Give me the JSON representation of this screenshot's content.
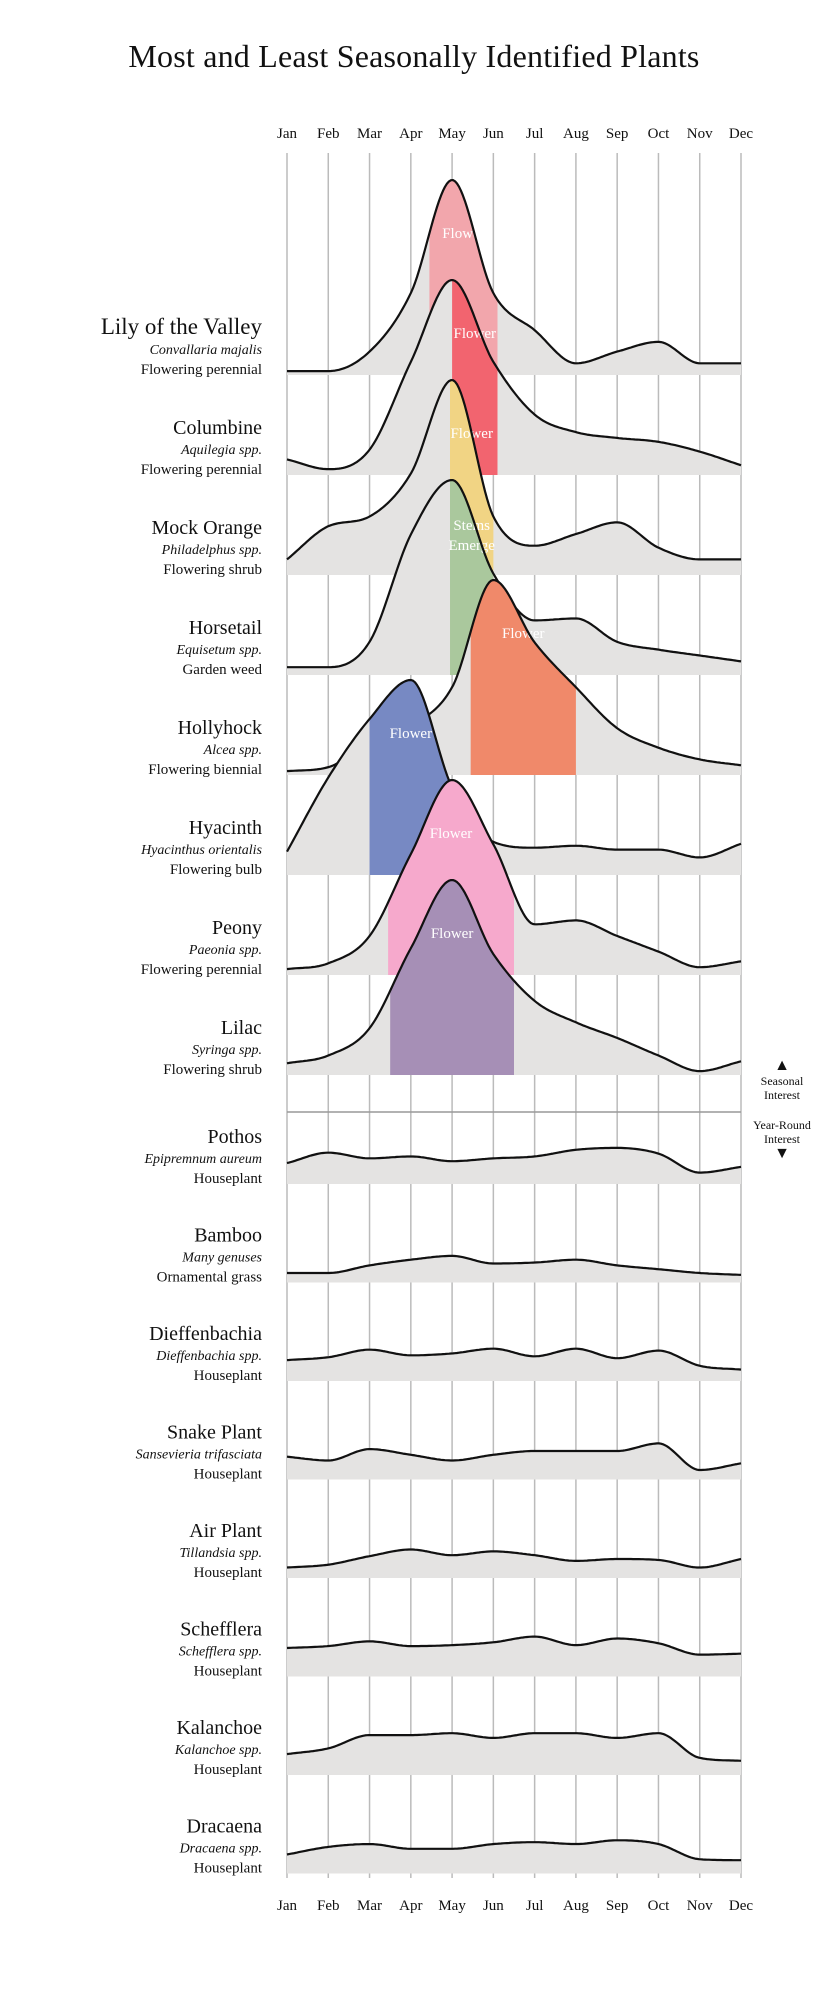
{
  "chart_data": {
    "type": "area",
    "title": "Most and Least Seasonally Identified Plants",
    "x_labels": [
      "Jan",
      "Feb",
      "Mar",
      "Apr",
      "May",
      "Jun",
      "Jul",
      "Aug",
      "Sep",
      "Oct",
      "Nov",
      "Dec"
    ],
    "xlabel": "",
    "ylabel": "",
    "ylim": [
      0,
      1
    ],
    "legend": {
      "seasonal_label": "Seasonal Interest",
      "yearround_label": "Year-Round Interest",
      "up_arrow": "▲",
      "down_arrow": "▼"
    },
    "colors": {
      "base_fill": "#e4e3e2",
      "line": "#111111",
      "gridline": "#bbbbbb",
      "highlight_text": "#ffffff"
    },
    "series": [
      {
        "name": "Lily of the Valley",
        "scientific": "Convallaria majalis",
        "category": "Flowering perennial",
        "group": "seasonal",
        "values": [
          0.02,
          0.02,
          0.12,
          0.42,
          1.0,
          0.42,
          0.23,
          0.06,
          0.12,
          0.17,
          0.06,
          0.06
        ],
        "highlight": {
          "label": "Flower",
          "start_month": 3.45,
          "end_month": 5.1,
          "color": "#f2a6ac"
        }
      },
      {
        "name": "Columbine",
        "scientific": "Aquilegia spp.",
        "category": "Flowering perennial",
        "group": "seasonal",
        "values": [
          0.08,
          0.03,
          0.13,
          0.58,
          1.0,
          0.58,
          0.31,
          0.22,
          0.19,
          0.17,
          0.12,
          0.05
        ],
        "highlight": {
          "label": "Flower",
          "start_month": 4.0,
          "end_month": 5.1,
          "color": "#f2646f"
        }
      },
      {
        "name": "Mock Orange",
        "scientific": "Philadelphus spp.",
        "category": "Flowering shrub",
        "group": "seasonal",
        "values": [
          0.08,
          0.25,
          0.3,
          0.52,
          1.0,
          0.3,
          0.15,
          0.21,
          0.27,
          0.14,
          0.08,
          0.08
        ],
        "highlight": {
          "label": "Flower",
          "start_month": 3.95,
          "end_month": 5.0,
          "color": "#f1d484"
        }
      },
      {
        "name": "Horsetail",
        "scientific": "Equisetum spp.",
        "category": "Garden weed",
        "group": "seasonal",
        "values": [
          0.04,
          0.04,
          0.17,
          0.72,
          1.0,
          0.52,
          0.28,
          0.29,
          0.17,
          0.13,
          0.1,
          0.07
        ],
        "highlight": {
          "label": "Stems\nEmerge",
          "start_month": 3.95,
          "end_month": 5.0,
          "color": "#aac89d"
        }
      },
      {
        "name": "Hollyhock",
        "scientific": "Alcea spp.",
        "category": "Flowering biennial",
        "group": "seasonal",
        "values": [
          0.02,
          0.04,
          0.17,
          0.25,
          0.45,
          1.0,
          0.68,
          0.45,
          0.24,
          0.14,
          0.08,
          0.05
        ],
        "highlight": {
          "label": "Flower",
          "start_month": 4.45,
          "end_month": 7.0,
          "color": "#f0896a"
        }
      },
      {
        "name": "Hyacinth",
        "scientific": "Hyacinthus orientalis",
        "category": "Flowering bulb",
        "group": "seasonal",
        "values": [
          0.12,
          0.5,
          0.8,
          1.0,
          0.45,
          0.17,
          0.14,
          0.15,
          0.13,
          0.13,
          0.09,
          0.16
        ],
        "highlight": {
          "label": "Flower",
          "start_month": 2.0,
          "end_month": 4.0,
          "color": "#7789c3"
        }
      },
      {
        "name": "Peony",
        "scientific": "Paeonia spp.",
        "category": "Flowering perennial",
        "group": "seasonal",
        "values": [
          0.03,
          0.06,
          0.2,
          0.62,
          1.0,
          0.67,
          0.26,
          0.28,
          0.2,
          0.12,
          0.04,
          0.07
        ],
        "highlight": {
          "label": "Flower",
          "start_month": 2.45,
          "end_month": 5.5,
          "color": "#f6a9cc"
        }
      },
      {
        "name": "Lilac",
        "scientific": "Syringa spp.",
        "category": "Flowering shrub",
        "group": "seasonal",
        "values": [
          0.06,
          0.1,
          0.24,
          0.65,
          1.0,
          0.62,
          0.38,
          0.27,
          0.19,
          0.1,
          0.02,
          0.07
        ],
        "highlight": {
          "label": "Flower",
          "start_month": 2.5,
          "end_month": 5.5,
          "color": "#a68fb6"
        }
      },
      {
        "name": "Pothos",
        "scientific": "Epipremnum aureum",
        "category": "Houseplant",
        "group": "year-round",
        "values": [
          0.22,
          0.33,
          0.27,
          0.29,
          0.24,
          0.27,
          0.29,
          0.36,
          0.38,
          0.32,
          0.12,
          0.18
        ]
      },
      {
        "name": "Bamboo",
        "scientific": "Many genuses",
        "category": "Ornamental grass",
        "group": "year-round",
        "values": [
          0.1,
          0.1,
          0.18,
          0.24,
          0.28,
          0.2,
          0.21,
          0.24,
          0.18,
          0.14,
          0.1,
          0.08
        ]
      },
      {
        "name": "Dieffenbachia",
        "scientific": "Dieffenbachia spp.",
        "category": "Houseplant",
        "group": "year-round",
        "values": [
          0.22,
          0.25,
          0.33,
          0.27,
          0.29,
          0.34,
          0.26,
          0.34,
          0.24,
          0.32,
          0.16,
          0.12
        ]
      },
      {
        "name": "Snake Plant",
        "scientific": "Sansevieria trifasciata",
        "category": "Houseplant",
        "group": "year-round",
        "values": [
          0.24,
          0.2,
          0.32,
          0.26,
          0.2,
          0.26,
          0.3,
          0.3,
          0.3,
          0.38,
          0.1,
          0.17
        ]
      },
      {
        "name": "Air Plant",
        "scientific": "Tillandsia spp.",
        "category": "Houseplant",
        "group": "year-round",
        "values": [
          0.11,
          0.14,
          0.23,
          0.3,
          0.24,
          0.28,
          0.24,
          0.18,
          0.2,
          0.19,
          0.11,
          0.2
        ]
      },
      {
        "name": "Schefflera",
        "scientific": "Schefflera spp.",
        "category": "Houseplant",
        "group": "year-round",
        "values": [
          0.3,
          0.32,
          0.37,
          0.32,
          0.33,
          0.36,
          0.42,
          0.33,
          0.4,
          0.35,
          0.23,
          0.24
        ]
      },
      {
        "name": "Kalanchoe",
        "scientific": "Kalanchoe spp.",
        "category": "Houseplant",
        "group": "year-round",
        "values": [
          0.22,
          0.28,
          0.42,
          0.42,
          0.44,
          0.39,
          0.44,
          0.44,
          0.39,
          0.44,
          0.18,
          0.15
        ]
      },
      {
        "name": "Dracaena",
        "scientific": "Dracaena spp.",
        "category": "Houseplant",
        "group": "year-round",
        "values": [
          0.2,
          0.28,
          0.31,
          0.26,
          0.26,
          0.31,
          0.33,
          0.31,
          0.35,
          0.31,
          0.15,
          0.14
        ]
      }
    ]
  }
}
